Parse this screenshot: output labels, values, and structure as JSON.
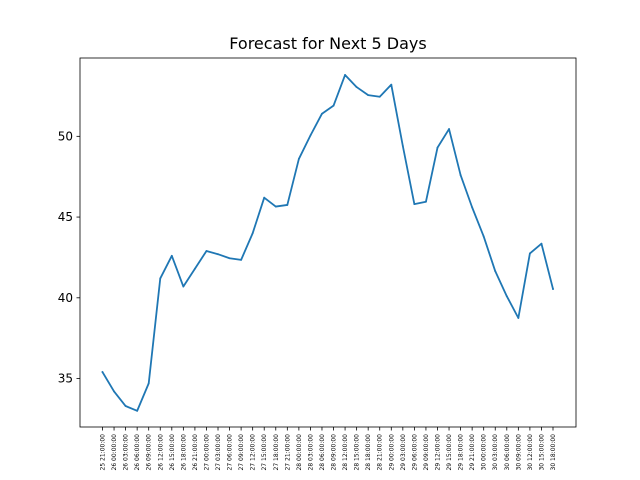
{
  "chart_data": {
    "type": "line",
    "title": "Forecast for Next 5 Days",
    "xlabel": "",
    "ylabel": "",
    "grid": false,
    "color": "#1f77b4",
    "x": [
      "25 21:00:00",
      "26 00:00:00",
      "26 03:00:00",
      "26 06:00:00",
      "26 09:00:00",
      "26 12:00:00",
      "26 15:00:00",
      "26 18:00:00",
      "26 21:00:00",
      "27 00:00:00",
      "27 03:00:00",
      "27 06:00:00",
      "27 09:00:00",
      "27 12:00:00",
      "27 15:00:00",
      "27 18:00:00",
      "27 21:00:00",
      "28 00:00:00",
      "28 03:00:00",
      "28 06:00:00",
      "28 09:00:00",
      "28 12:00:00",
      "28 15:00:00",
      "28 18:00:00",
      "28 21:00:00",
      "29 00:00:00",
      "29 03:00:00",
      "29 06:00:00",
      "29 09:00:00",
      "29 12:00:00",
      "29 15:00:00",
      "29 18:00:00",
      "29 21:00:00",
      "30 00:00:00",
      "30 03:00:00",
      "30 06:00:00",
      "30 09:00:00",
      "30 12:00:00",
      "30 15:00:00",
      "30 18:00:00"
    ],
    "values": [
      35.4,
      34.2,
      33.3,
      33.0,
      34.7,
      41.2,
      42.6,
      40.7,
      41.8,
      42.9,
      42.7,
      42.45,
      42.35,
      44.0,
      46.2,
      45.65,
      45.75,
      48.6,
      50.05,
      51.4,
      51.9,
      53.8,
      53.05,
      52.55,
      52.45,
      53.2,
      49.4,
      45.8,
      45.95,
      49.3,
      50.45,
      47.6,
      45.6,
      43.8,
      41.65,
      40.1,
      38.75,
      42.75,
      43.35,
      40.55
    ],
    "yticks": [
      35,
      40,
      45,
      50
    ],
    "ylim": [
      32.0,
      54.85
    ]
  }
}
